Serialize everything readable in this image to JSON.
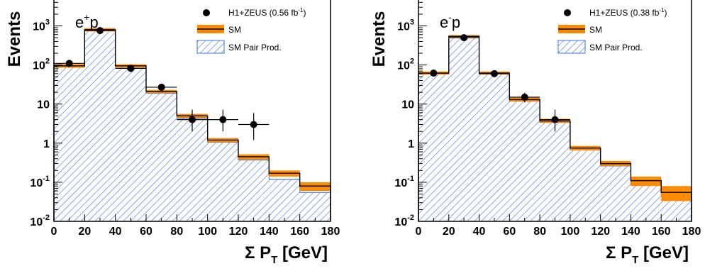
{
  "chart_data": [
    {
      "type": "histogram",
      "beam": {
        "base": "e",
        "sup": "+",
        "tail": "p"
      },
      "ylabel": "Events",
      "xlabel": {
        "prefix": "Σ P",
        "sub": "T",
        "suffix": " [GeV]"
      },
      "xlim": [
        0,
        180
      ],
      "ylim": [
        0.01,
        5000
      ],
      "yscale": "log",
      "xticks": [
        "0",
        "20",
        "40",
        "60",
        "80",
        "100",
        "120",
        "140",
        "160",
        "180"
      ],
      "yticks": [
        {
          "value": 1000,
          "base": "10",
          "exp": "3"
        },
        {
          "value": 100,
          "base": "10",
          "exp": "2"
        },
        {
          "value": 10,
          "base": "10",
          "exp": ""
        },
        {
          "value": 1,
          "base": "1",
          "exp": ""
        },
        {
          "value": 0.1,
          "base": "10",
          "exp": "-1"
        },
        {
          "value": 0.01,
          "base": "10",
          "exp": "-2"
        }
      ],
      "bin_edges": [
        0,
        20,
        40,
        60,
        80,
        100,
        120,
        140,
        160,
        180
      ],
      "series": [
        {
          "name": "H1+ZEUS (0.56 fb",
          "name_sup": "-1",
          "name_tail": ")",
          "kind": "data",
          "x": [
            10,
            30,
            50,
            70,
            90,
            110,
            130
          ],
          "y": [
            110,
            760,
            82,
            27,
            4,
            4,
            3
          ],
          "yerr_low": [
            10,
            28,
            9,
            5,
            2,
            2,
            1.8
          ],
          "yerr_high": [
            11,
            28,
            10,
            6,
            3.2,
            3.2,
            2.9
          ]
        },
        {
          "name": "SM",
          "kind": "band",
          "values": [
            95,
            800,
            95,
            21,
            5,
            1.2,
            0.45,
            0.17,
            0.08
          ],
          "band_low": [
            85,
            720,
            86,
            19,
            4.4,
            1.05,
            0.38,
            0.14,
            0.06
          ],
          "band_high": [
            105,
            880,
            104,
            23,
            5.6,
            1.35,
            0.52,
            0.2,
            0.1
          ]
        },
        {
          "name": "SM Pair Prod.",
          "kind": "hatched",
          "values": [
            88,
            780,
            88,
            19,
            4.3,
            1.05,
            0.37,
            0.12,
            0.055
          ]
        }
      ],
      "legend_position": "top-right"
    },
    {
      "type": "histogram",
      "beam": {
        "base": "e",
        "sup": "-",
        "tail": "p"
      },
      "ylabel": "Events",
      "xlabel": {
        "prefix": "Σ P",
        "sub": "T",
        "suffix": " [GeV]"
      },
      "xlim": [
        0,
        180
      ],
      "ylim": [
        0.01,
        5000
      ],
      "yscale": "log",
      "xticks": [
        "0",
        "20",
        "40",
        "60",
        "80",
        "100",
        "120",
        "140",
        "160",
        "180"
      ],
      "yticks": [
        {
          "value": 1000,
          "base": "10",
          "exp": "3"
        },
        {
          "value": 100,
          "base": "10",
          "exp": "2"
        },
        {
          "value": 10,
          "base": "10",
          "exp": ""
        },
        {
          "value": 1,
          "base": "1",
          "exp": ""
        },
        {
          "value": 0.1,
          "base": "10",
          "exp": "-1"
        },
        {
          "value": 0.01,
          "base": "10",
          "exp": "-2"
        }
      ],
      "bin_edges": [
        0,
        20,
        40,
        60,
        80,
        100,
        120,
        140,
        160,
        180
      ],
      "series": [
        {
          "name": "H1+ZEUS (0.38 fb",
          "name_sup": "-1",
          "name_tail": ")",
          "kind": "data",
          "x": [
            10,
            30,
            50,
            70,
            90
          ],
          "y": [
            62,
            500,
            60,
            15,
            4
          ],
          "yerr_low": [
            8,
            22,
            8,
            4,
            2
          ],
          "yerr_high": [
            9,
            22,
            8,
            4.5,
            3.2
          ]
        },
        {
          "name": "SM",
          "kind": "band",
          "values": [
            62,
            540,
            62,
            13,
            3.7,
            0.75,
            0.3,
            0.11,
            0.055
          ],
          "band_low": [
            57,
            500,
            57,
            11.5,
            3.3,
            0.65,
            0.26,
            0.08,
            0.033
          ],
          "band_high": [
            68,
            580,
            68,
            14.5,
            4.2,
            0.85,
            0.35,
            0.14,
            0.08
          ]
        },
        {
          "name": "SM Pair Prod.",
          "kind": "hatched",
          "values": [
            58,
            520,
            58,
            12,
            3.4,
            0.68,
            0.26,
            0.085,
            0.045
          ]
        }
      ],
      "legend_position": "top-right"
    }
  ]
}
